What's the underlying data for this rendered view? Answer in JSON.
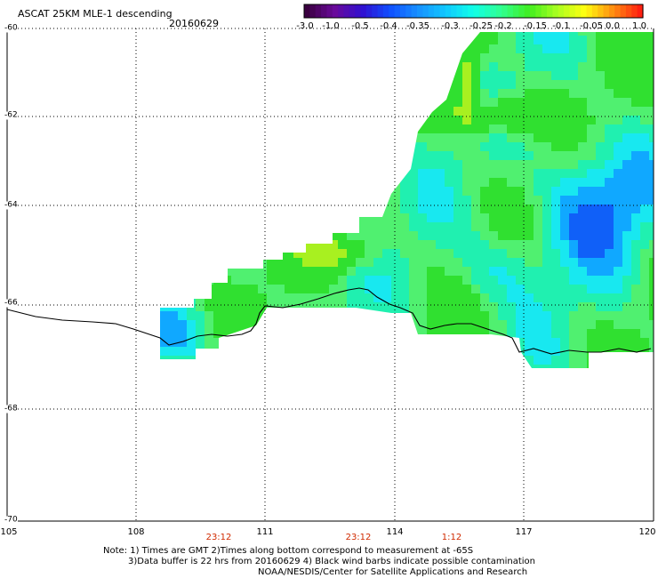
{
  "header": {
    "title": "ASCAT 25KM MLE-1 descending",
    "date": "20160629"
  },
  "colorbar": {
    "labels": [
      "-3.0",
      "-1.0",
      "-0.5",
      "-0.4",
      "-0.35",
      "-0.3",
      "-0.25",
      "-0.2",
      "-0.15",
      "-0.1",
      "-0.05",
      "0.0",
      "1.0"
    ],
    "colors": [
      "#3a0040",
      "#6a0a9a",
      "#3010d0",
      "#1050ff",
      "#1890ff",
      "#10c8ff",
      "#10ffe8",
      "#30ff90",
      "#40ee20",
      "#a8ff20",
      "#ffff10",
      "#ff9010",
      "#ff2010"
    ]
  },
  "map": {
    "lat_labels": [
      "-60",
      "-62",
      "-64",
      "-66",
      "-68",
      "-70"
    ],
    "lon_labels": [
      "105",
      "108",
      "111",
      "114",
      "117",
      "120"
    ],
    "time_labels": [
      "23:12",
      "23:12",
      "1:12"
    ]
  },
  "notes": {
    "line1": "Note: 1) Times are GMT 2)Times along bottom correspond to measurement at -65S",
    "line2": "3)Data buffer is 22 hrs from 20160629 4) Black wind barbs indicate possible contamination",
    "line3": "NOAA/NESDIS/Center for Satellite Applications and Research"
  }
}
